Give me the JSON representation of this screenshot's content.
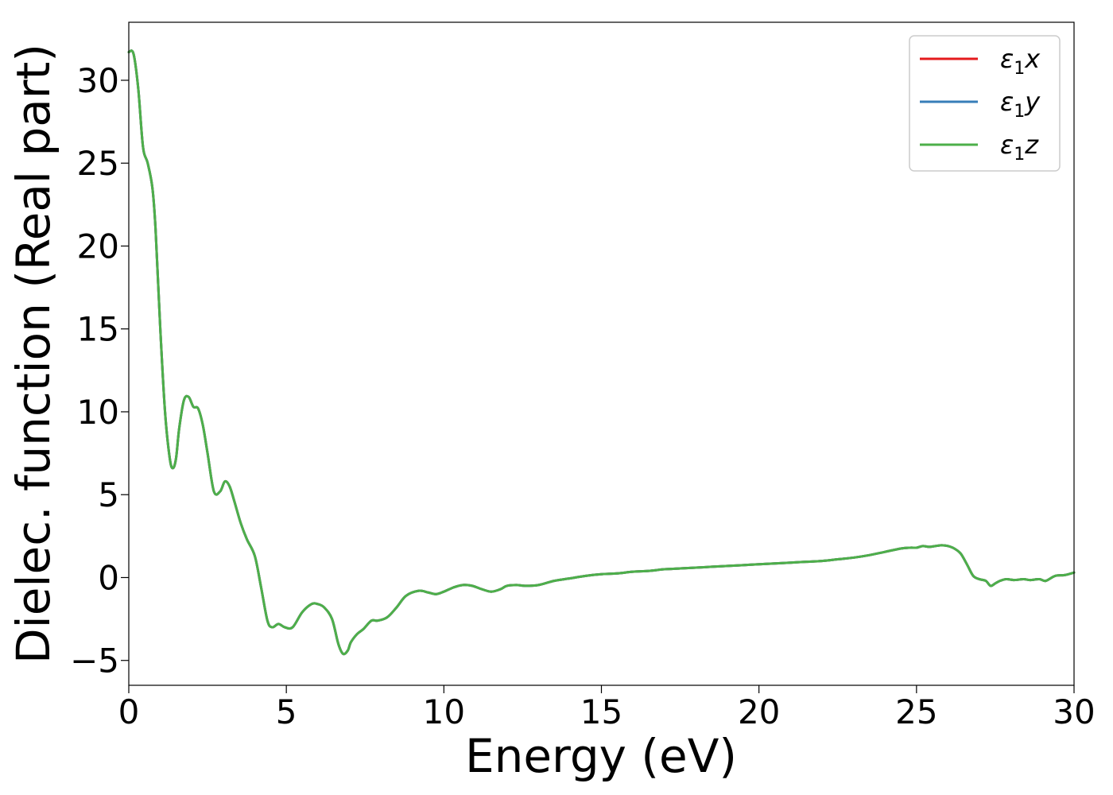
{
  "chart_data": {
    "type": "line",
    "title": "",
    "xlabel": "Energy (eV)",
    "ylabel": "Dielec. function (Real part)",
    "xlim": [
      0,
      30
    ],
    "ylim": [
      -6.5,
      33.5
    ],
    "grid": false,
    "legend_position": "top-right",
    "xticks": [
      0,
      5,
      10,
      15,
      20,
      25,
      30
    ],
    "yticks": [
      -5,
      0,
      5,
      10,
      15,
      20,
      25,
      30
    ],
    "xtick_labels": [
      "0",
      "5",
      "10",
      "15",
      "20",
      "25",
      "30"
    ],
    "ytick_labels": [
      "−5",
      "0",
      "5",
      "10",
      "15",
      "20",
      "25",
      "30"
    ],
    "x": [
      0.0,
      0.15,
      0.3,
      0.45,
      0.6,
      0.75,
      0.85,
      1.0,
      1.15,
      1.3,
      1.4,
      1.5,
      1.6,
      1.75,
      1.9,
      2.05,
      2.2,
      2.35,
      2.5,
      2.7,
      2.9,
      3.05,
      3.2,
      3.35,
      3.55,
      3.75,
      4.0,
      4.2,
      4.4,
      4.55,
      4.75,
      4.95,
      5.2,
      5.5,
      5.8,
      6.0,
      6.2,
      6.45,
      6.65,
      6.8,
      6.95,
      7.05,
      7.25,
      7.45,
      7.7,
      7.9,
      8.2,
      8.5,
      8.8,
      9.2,
      9.5,
      9.75,
      10.0,
      10.3,
      10.6,
      10.9,
      11.2,
      11.5,
      11.8,
      12.0,
      12.3,
      12.6,
      13.0,
      13.5,
      14.0,
      14.5,
      15.0,
      15.5,
      16.0,
      16.5,
      17.0,
      17.5,
      18.0,
      18.5,
      19.0,
      19.5,
      20.0,
      20.5,
      21.0,
      21.5,
      22.0,
      22.5,
      23.0,
      23.5,
      24.0,
      24.5,
      24.8,
      25.0,
      25.2,
      25.4,
      25.6,
      25.8,
      26.0,
      26.2,
      26.4,
      26.6,
      26.8,
      27.0,
      27.2,
      27.35,
      27.5,
      27.65,
      27.85,
      28.1,
      28.4,
      28.6,
      28.9,
      29.1,
      29.4,
      29.7,
      30.0
    ],
    "series": [
      {
        "name": "ε₁x",
        "color": "#e41a1c",
        "y": [
          31.7,
          31.6,
          29.5,
          26.0,
          25.0,
          23.5,
          21.0,
          15.0,
          10.0,
          7.2,
          6.6,
          7.2,
          9.0,
          10.7,
          10.9,
          10.3,
          10.2,
          9.2,
          7.5,
          5.2,
          5.2,
          5.8,
          5.5,
          4.6,
          3.3,
          2.3,
          1.3,
          -0.6,
          -2.6,
          -3.0,
          -2.8,
          -3.0,
          -3.0,
          -2.1,
          -1.6,
          -1.6,
          -1.8,
          -2.5,
          -4.0,
          -4.6,
          -4.4,
          -3.9,
          -3.4,
          -3.1,
          -2.6,
          -2.6,
          -2.4,
          -1.8,
          -1.1,
          -0.8,
          -0.9,
          -1.0,
          -0.85,
          -0.6,
          -0.45,
          -0.5,
          -0.7,
          -0.85,
          -0.7,
          -0.5,
          -0.45,
          -0.5,
          -0.45,
          -0.2,
          -0.05,
          0.1,
          0.2,
          0.25,
          0.35,
          0.4,
          0.5,
          0.55,
          0.6,
          0.65,
          0.7,
          0.75,
          0.8,
          0.85,
          0.9,
          0.95,
          1.0,
          1.1,
          1.2,
          1.35,
          1.55,
          1.75,
          1.8,
          1.8,
          1.9,
          1.85,
          1.9,
          1.95,
          1.9,
          1.75,
          1.45,
          0.8,
          0.1,
          -0.1,
          -0.2,
          -0.5,
          -0.35,
          -0.2,
          -0.1,
          -0.15,
          -0.1,
          -0.15,
          -0.1,
          -0.2,
          0.1,
          0.15,
          0.3
        ]
      },
      {
        "name": "ε₁y",
        "color": "#377eb8",
        "y": [
          31.7,
          31.6,
          29.5,
          26.0,
          25.0,
          23.5,
          21.0,
          15.0,
          10.0,
          7.2,
          6.6,
          7.2,
          9.0,
          10.7,
          10.9,
          10.3,
          10.2,
          9.2,
          7.5,
          5.2,
          5.2,
          5.8,
          5.5,
          4.6,
          3.3,
          2.3,
          1.3,
          -0.6,
          -2.6,
          -3.0,
          -2.8,
          -3.0,
          -3.0,
          -2.1,
          -1.6,
          -1.6,
          -1.8,
          -2.5,
          -4.0,
          -4.6,
          -4.4,
          -3.9,
          -3.4,
          -3.1,
          -2.6,
          -2.6,
          -2.4,
          -1.8,
          -1.1,
          -0.8,
          -0.9,
          -1.0,
          -0.85,
          -0.6,
          -0.45,
          -0.5,
          -0.7,
          -0.85,
          -0.7,
          -0.5,
          -0.45,
          -0.5,
          -0.45,
          -0.2,
          -0.05,
          0.1,
          0.2,
          0.25,
          0.35,
          0.4,
          0.5,
          0.55,
          0.6,
          0.65,
          0.7,
          0.75,
          0.8,
          0.85,
          0.9,
          0.95,
          1.0,
          1.1,
          1.2,
          1.35,
          1.55,
          1.75,
          1.8,
          1.8,
          1.9,
          1.85,
          1.9,
          1.95,
          1.9,
          1.75,
          1.45,
          0.8,
          0.1,
          -0.1,
          -0.2,
          -0.5,
          -0.35,
          -0.2,
          -0.1,
          -0.15,
          -0.1,
          -0.15,
          -0.1,
          -0.2,
          0.1,
          0.15,
          0.3
        ]
      },
      {
        "name": "ε₁z",
        "color": "#4daf4a",
        "y": [
          31.7,
          31.6,
          29.5,
          26.0,
          25.0,
          23.5,
          21.0,
          15.0,
          10.0,
          7.2,
          6.6,
          7.2,
          9.0,
          10.7,
          10.9,
          10.3,
          10.2,
          9.2,
          7.5,
          5.2,
          5.2,
          5.8,
          5.5,
          4.6,
          3.3,
          2.3,
          1.3,
          -0.6,
          -2.6,
          -3.0,
          -2.8,
          -3.0,
          -3.0,
          -2.1,
          -1.6,
          -1.6,
          -1.8,
          -2.5,
          -4.0,
          -4.6,
          -4.4,
          -3.9,
          -3.4,
          -3.1,
          -2.6,
          -2.6,
          -2.4,
          -1.8,
          -1.1,
          -0.8,
          -0.9,
          -1.0,
          -0.85,
          -0.6,
          -0.45,
          -0.5,
          -0.7,
          -0.85,
          -0.7,
          -0.5,
          -0.45,
          -0.5,
          -0.45,
          -0.2,
          -0.05,
          0.1,
          0.2,
          0.25,
          0.35,
          0.4,
          0.5,
          0.55,
          0.6,
          0.65,
          0.7,
          0.75,
          0.8,
          0.85,
          0.9,
          0.95,
          1.0,
          1.1,
          1.2,
          1.35,
          1.55,
          1.75,
          1.8,
          1.8,
          1.9,
          1.85,
          1.9,
          1.95,
          1.9,
          1.75,
          1.45,
          0.8,
          0.1,
          -0.1,
          -0.2,
          -0.5,
          -0.35,
          -0.2,
          -0.1,
          -0.15,
          -0.1,
          -0.15,
          -0.1,
          -0.2,
          0.1,
          0.15,
          0.3
        ]
      }
    ],
    "legend": [
      {
        "symbol": "ε",
        "sub": "1",
        "axis": "x",
        "color": "#e41a1c"
      },
      {
        "symbol": "ε",
        "sub": "1",
        "axis": "y",
        "color": "#377eb8"
      },
      {
        "symbol": "ε",
        "sub": "1",
        "axis": "z",
        "color": "#4daf4a"
      }
    ]
  }
}
